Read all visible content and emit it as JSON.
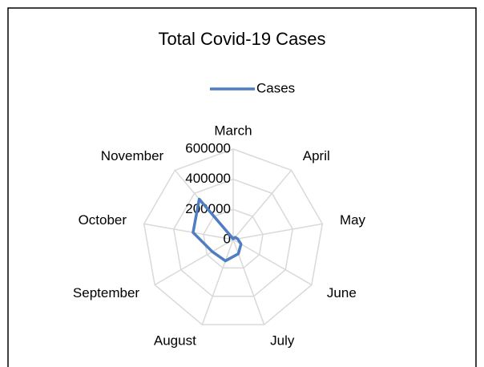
{
  "chart_data": {
    "type": "radar",
    "title": "Total Covid-19 Cases",
    "categories": [
      "March",
      "April",
      "May",
      "June",
      "July",
      "August",
      "September",
      "October",
      "November"
    ],
    "series": [
      {
        "name": "Cases",
        "color": "#4f7dc1",
        "values": [
          5000,
          20000,
          30000,
          60000,
          100000,
          150000,
          160000,
          270000,
          350000
        ]
      }
    ],
    "rlim": [
      0,
      600000
    ],
    "rticks": [
      0,
      200000,
      400000,
      600000
    ],
    "grid": true,
    "legend": "top"
  }
}
